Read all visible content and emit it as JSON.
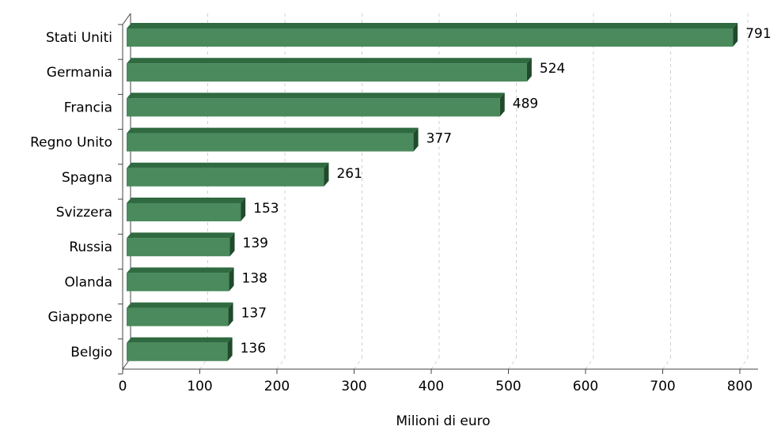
{
  "chart_data": {
    "type": "bar",
    "orientation": "horizontal",
    "categories": [
      "Stati Uniti",
      "Germania",
      "Francia",
      "Regno Unito",
      "Spagna",
      "Svizzera",
      "Russia",
      "Olanda",
      "Giappone",
      "Belgio"
    ],
    "values": [
      791,
      524,
      489,
      377,
      261,
      153,
      139,
      138,
      137,
      136
    ],
    "data_labels": [
      "791",
      "524",
      "489",
      "377",
      "261",
      "153",
      "139",
      "138",
      "137",
      "136"
    ],
    "xlabel": "Milioni di euro",
    "ylabel": "",
    "xlim": [
      0,
      800
    ],
    "xticks": [
      0,
      100,
      200,
      300,
      400,
      500,
      600,
      700,
      800
    ],
    "xtick_labels": [
      "0",
      "100",
      "200",
      "300",
      "400",
      "500",
      "600",
      "700",
      "800"
    ],
    "grid": "vertical dashed",
    "style": "3d",
    "colors": {
      "bar_front": "#4a8a5c",
      "bar_top": "#2f6a40",
      "bar_side": "#1f4a2b",
      "grid": "#d0d0d0"
    }
  }
}
